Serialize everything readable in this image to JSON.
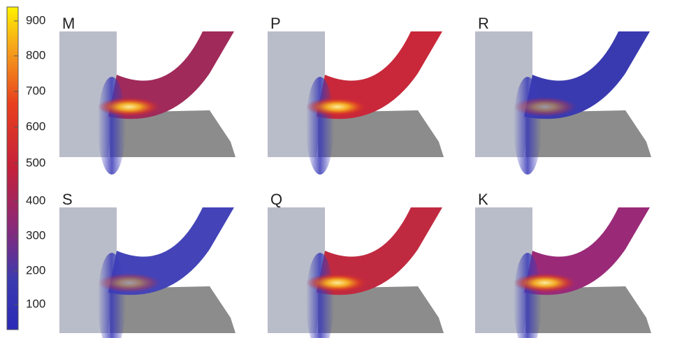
{
  "colorbar": {
    "ticks": [
      900,
      800,
      700,
      600,
      500,
      400,
      300,
      200,
      100
    ]
  },
  "panels": [
    {
      "label": "M",
      "chip": "#a02a5a"
    },
    {
      "label": "P",
      "chip": "#c8283a"
    },
    {
      "label": "R",
      "chip": "#3a3ab0"
    },
    {
      "label": "S",
      "chip": "#4444b8"
    },
    {
      "label": "Q",
      "chip": "#c02a40"
    },
    {
      "label": "K",
      "chip": "#9a2a78"
    }
  ]
}
